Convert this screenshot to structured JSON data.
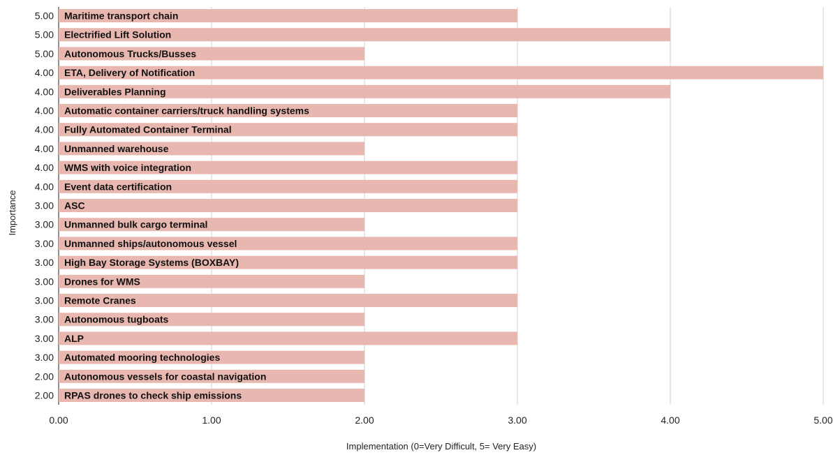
{
  "chart_data": {
    "type": "bar",
    "orientation": "horizontal",
    "xlabel": "Implementation (0=Very Difficult, 5= Very Easy)",
    "ylabel": "Importance",
    "xlim": [
      0,
      5
    ],
    "x_ticks": [
      "0.00",
      "1.00",
      "2.00",
      "3.00",
      "4.00",
      "5.00"
    ],
    "grid": "vertical",
    "bar_color": "#e8b7b0",
    "categories": [
      "Maritime transport chain",
      "Electrified Lift Solution",
      "Autonomous Trucks/Busses",
      "ETA, Delivery of Notification",
      "Deliverables Planning",
      "Automatic container carriers/truck handling systems",
      "Fully Automated Container Terminal",
      "Unmanned warehouse",
      "WMS with voice integration",
      "Event data certification",
      "ASC",
      "Unmanned bulk cargo terminal",
      "Unmanned ships/autonomous vessel",
      "High Bay Storage Systems (BOXBAY)",
      "Drones for WMS",
      "Remote Cranes",
      "Autonomous tugboats",
      "ALP",
      "Automated mooring technologies",
      "Autonomous vessels for coastal navigation",
      "RPAS drones  to check ship emissions"
    ],
    "importance_labels": [
      "5.00",
      "5.00",
      "5.00",
      "4.00",
      "4.00",
      "4.00",
      "4.00",
      "4.00",
      "4.00",
      "4.00",
      "3.00",
      "3.00",
      "3.00",
      "3.00",
      "3.00",
      "3.00",
      "3.00",
      "3.00",
      "3.00",
      "2.00",
      "2.00"
    ],
    "values": [
      3,
      4,
      2,
      5,
      4,
      3,
      3,
      2,
      3,
      3,
      3,
      2,
      3,
      3,
      2,
      3,
      2,
      3,
      2,
      2,
      2
    ]
  }
}
